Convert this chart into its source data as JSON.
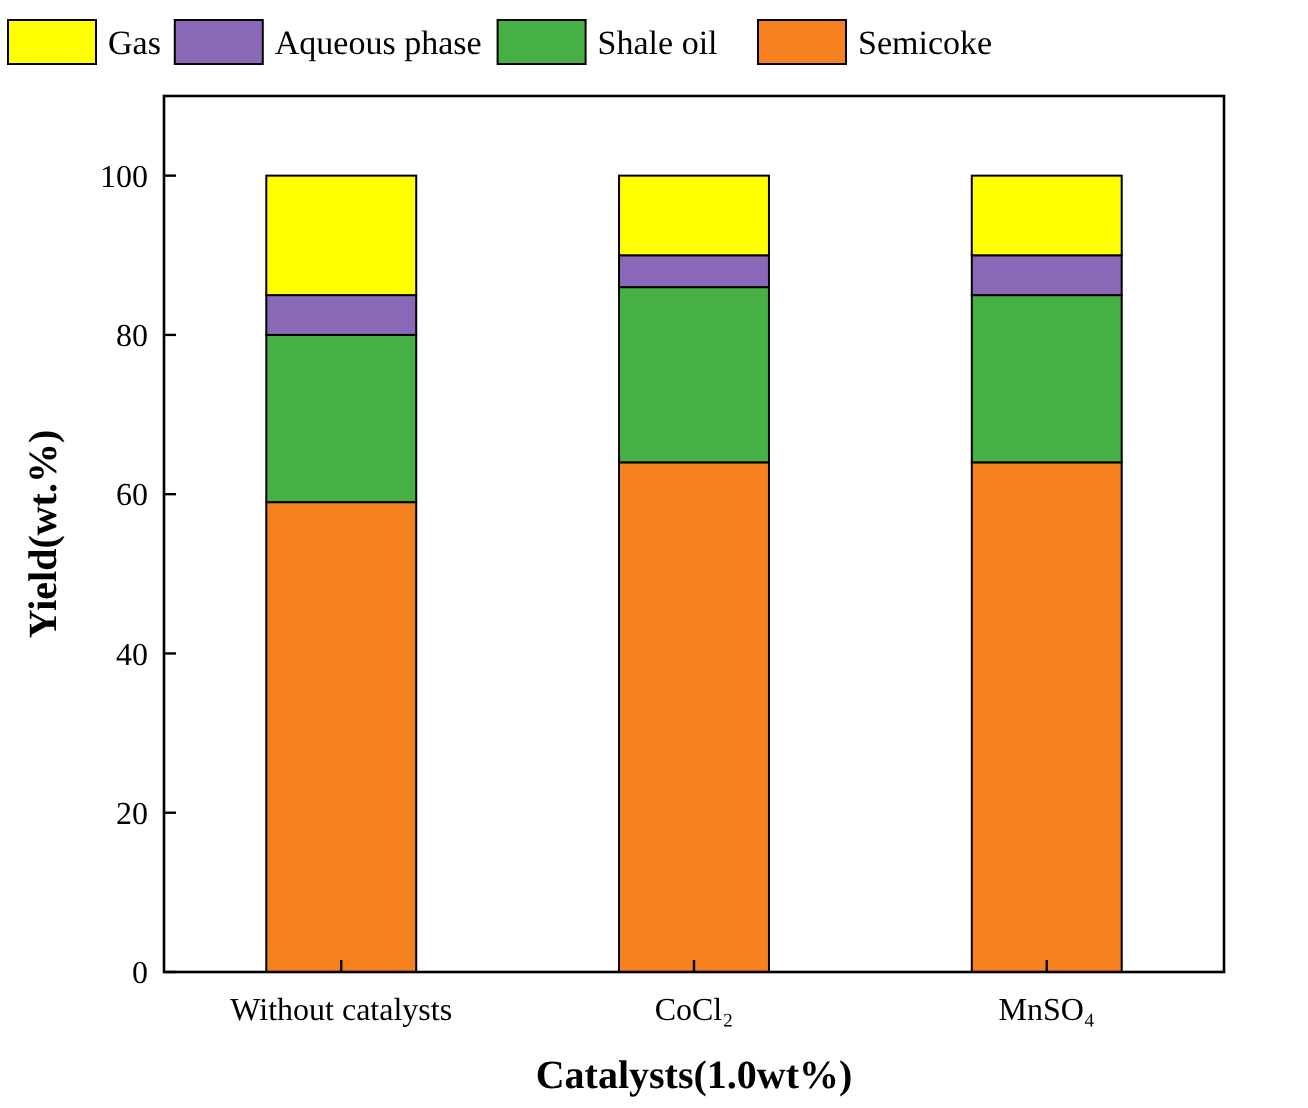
{
  "chart_data": {
    "type": "bar",
    "stacked": true,
    "xlabel": "Catalysts(1.0wt%)",
    "ylabel": "Yield(wt.%)",
    "categories": [
      "Without catalysts",
      "CoCl₂",
      "MnSO₄"
    ],
    "series": [
      {
        "name": "Semicoke",
        "color": "#f5821f",
        "values": [
          59,
          64,
          64
        ]
      },
      {
        "name": "Shale oil",
        "color": "#46b044",
        "values": [
          21,
          22,
          21
        ]
      },
      {
        "name": "Aqueous phase",
        "color": "#8a68b8",
        "values": [
          5,
          4,
          5
        ]
      },
      {
        "name": "Gas",
        "color": "#ffff00",
        "values": [
          15,
          10,
          10
        ]
      }
    ],
    "ylim": [
      0,
      110
    ],
    "yticks": [
      0,
      20,
      40,
      60,
      80,
      100
    ],
    "legend": "top"
  }
}
